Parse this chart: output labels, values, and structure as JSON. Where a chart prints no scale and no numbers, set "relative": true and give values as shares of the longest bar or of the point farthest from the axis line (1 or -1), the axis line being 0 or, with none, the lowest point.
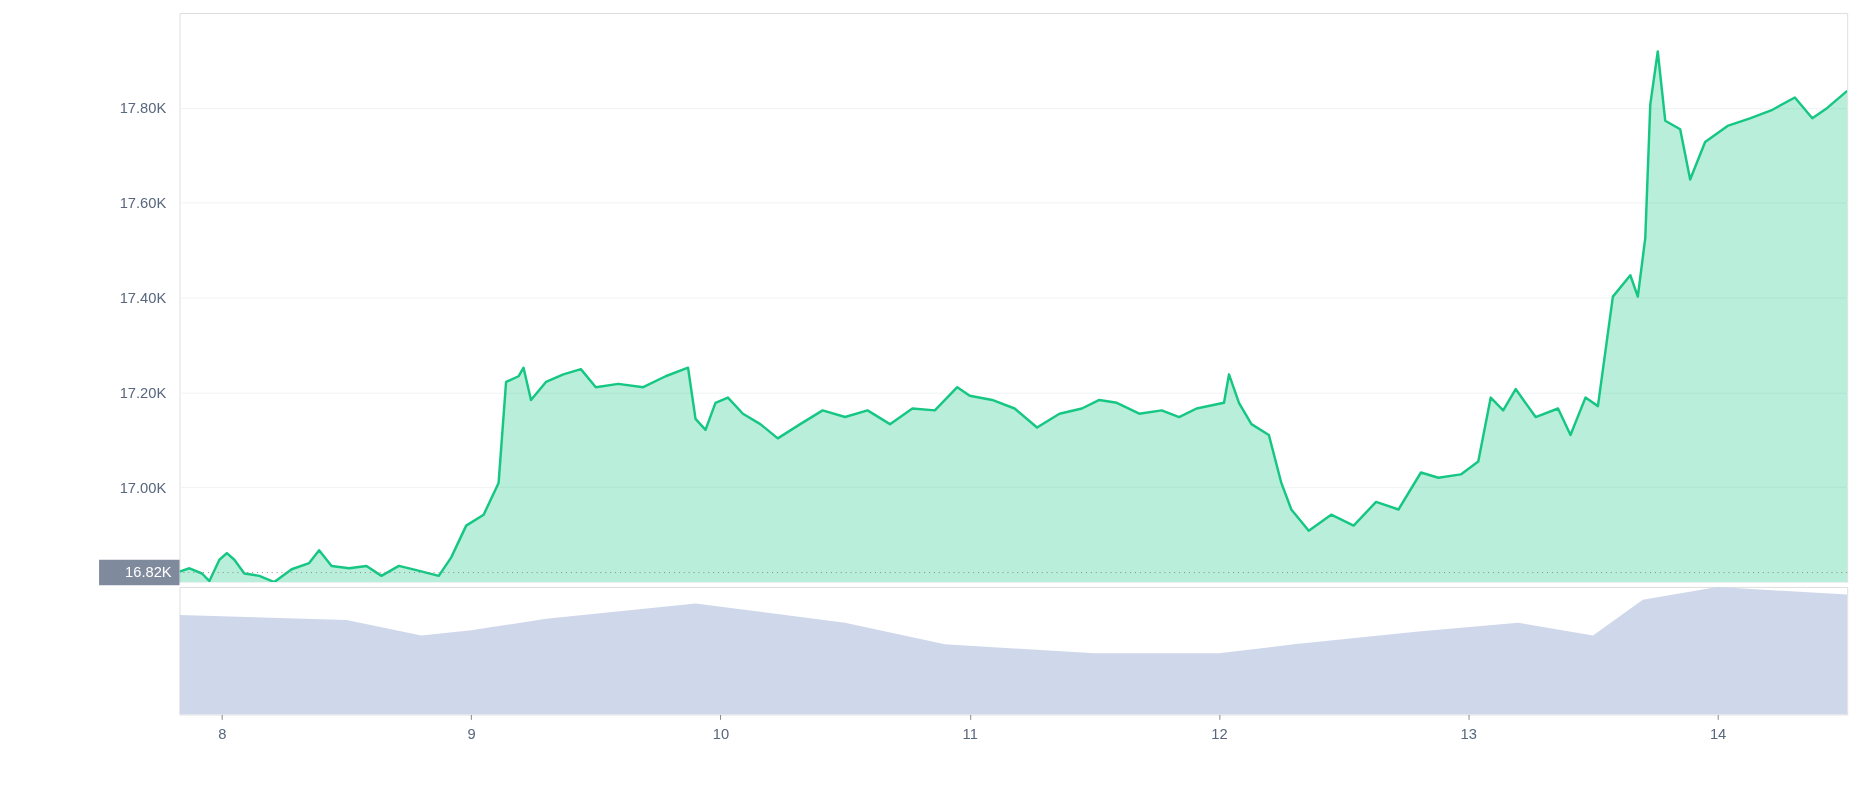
{
  "chart_data": [
    {
      "type": "area",
      "color": "#16c784",
      "grid": "y",
      "tick_labels": "y",
      "marker": "none",
      "line_style": "solid",
      "x": [
        7.83,
        7.87,
        7.92,
        7.95,
        7.99,
        8.02,
        8.05,
        8.09,
        8.15,
        8.21,
        8.28,
        8.35,
        8.39,
        8.44,
        8.51,
        8.58,
        8.64,
        8.71,
        8.78,
        8.87,
        8.92,
        8.98,
        9.05,
        9.11,
        9.14,
        9.19,
        9.21,
        9.24,
        9.3,
        9.37,
        9.44,
        9.5,
        9.59,
        9.69,
        9.78,
        9.87,
        9.9,
        9.94,
        9.98,
        10.03,
        10.09,
        10.16,
        10.23,
        10.32,
        10.41,
        10.5,
        10.59,
        10.68,
        10.77,
        10.86,
        10.95,
        11.0,
        11.09,
        11.18,
        11.27,
        11.36,
        11.45,
        11.52,
        11.59,
        11.68,
        11.77,
        11.84,
        11.91,
        12.02,
        12.04,
        12.08,
        12.13,
        12.2,
        12.25,
        12.29,
        12.36,
        12.45,
        12.54,
        12.63,
        12.72,
        12.81,
        12.88,
        12.97,
        13.04,
        13.09,
        13.14,
        13.19,
        13.27,
        13.36,
        13.41,
        13.47,
        13.52,
        13.58,
        13.65,
        13.68,
        13.71,
        13.73,
        13.76,
        13.79,
        13.85,
        13.89,
        13.95,
        14.04,
        14.13,
        14.22,
        14.31,
        14.38,
        14.44,
        14.52
      ],
      "values": [
        16822,
        16829,
        16818,
        16802,
        16847,
        16861,
        16847,
        16818,
        16813,
        16800,
        16827,
        16840,
        16867,
        16834,
        16829,
        16834,
        16813,
        16834,
        16825,
        16813,
        16852,
        16919,
        16942,
        17009,
        17222,
        17234,
        17252,
        17184,
        17222,
        17238,
        17249,
        17211,
        17218,
        17211,
        17234,
        17252,
        17144,
        17121,
        17178,
        17189,
        17155,
        17133,
        17103,
        17133,
        17162,
        17148,
        17162,
        17133,
        17166,
        17162,
        17211,
        17193,
        17184,
        17166,
        17126,
        17155,
        17166,
        17184,
        17178,
        17155,
        17162,
        17148,
        17166,
        17178,
        17238,
        17178,
        17133,
        17110,
        17009,
        16953,
        16908,
        16942,
        16919,
        16969,
        16953,
        17031,
        17020,
        17027,
        17054,
        17189,
        17162,
        17207,
        17148,
        17166,
        17110,
        17189,
        17171,
        17402,
        17447,
        17402,
        17526,
        17807,
        17919,
        17773,
        17755,
        17649,
        17728,
        17762,
        17778,
        17796,
        17822,
        17778,
        17800,
        17836
      ],
      "xlim": [
        7.83,
        14.52
      ],
      "xticks": [
        8,
        9,
        10,
        11,
        12,
        13,
        14
      ],
      "ylim": [
        16800,
        18000
      ],
      "yticks": [
        {
          "value": 16800,
          "label": null
        },
        {
          "value": 17000,
          "label": "17.00K"
        },
        {
          "value": 17200,
          "label": "17.20K"
        },
        {
          "value": 17400,
          "label": "17.40K"
        },
        {
          "value": 17600,
          "label": "17.60K"
        },
        {
          "value": 17800,
          "label": "17.80K"
        }
      ],
      "ref_lines": [
        {
          "axis": "y",
          "value": 16820,
          "label": "16.82K",
          "color": "#888888",
          "line_style": "dotted"
        }
      ]
    },
    {
      "type": "area",
      "relative": true,
      "color": "#cfd8ea",
      "grid": false,
      "tick_labels": "x",
      "x": [
        7.83,
        8.5,
        8.8,
        9.0,
        9.3,
        9.9,
        10.5,
        10.9,
        11.5,
        12.0,
        12.3,
        12.8,
        13.2,
        13.5,
        13.7,
        14.0,
        14.52
      ],
      "values": [
        0.78,
        0.74,
        0.62,
        0.66,
        0.75,
        0.87,
        0.72,
        0.55,
        0.48,
        0.48,
        0.55,
        0.65,
        0.72,
        0.62,
        0.9,
        1.0,
        0.94
      ],
      "xlim": [
        7.83,
        14.52
      ],
      "xticks": [
        8,
        9,
        10,
        11,
        12,
        13,
        14
      ]
    }
  ]
}
